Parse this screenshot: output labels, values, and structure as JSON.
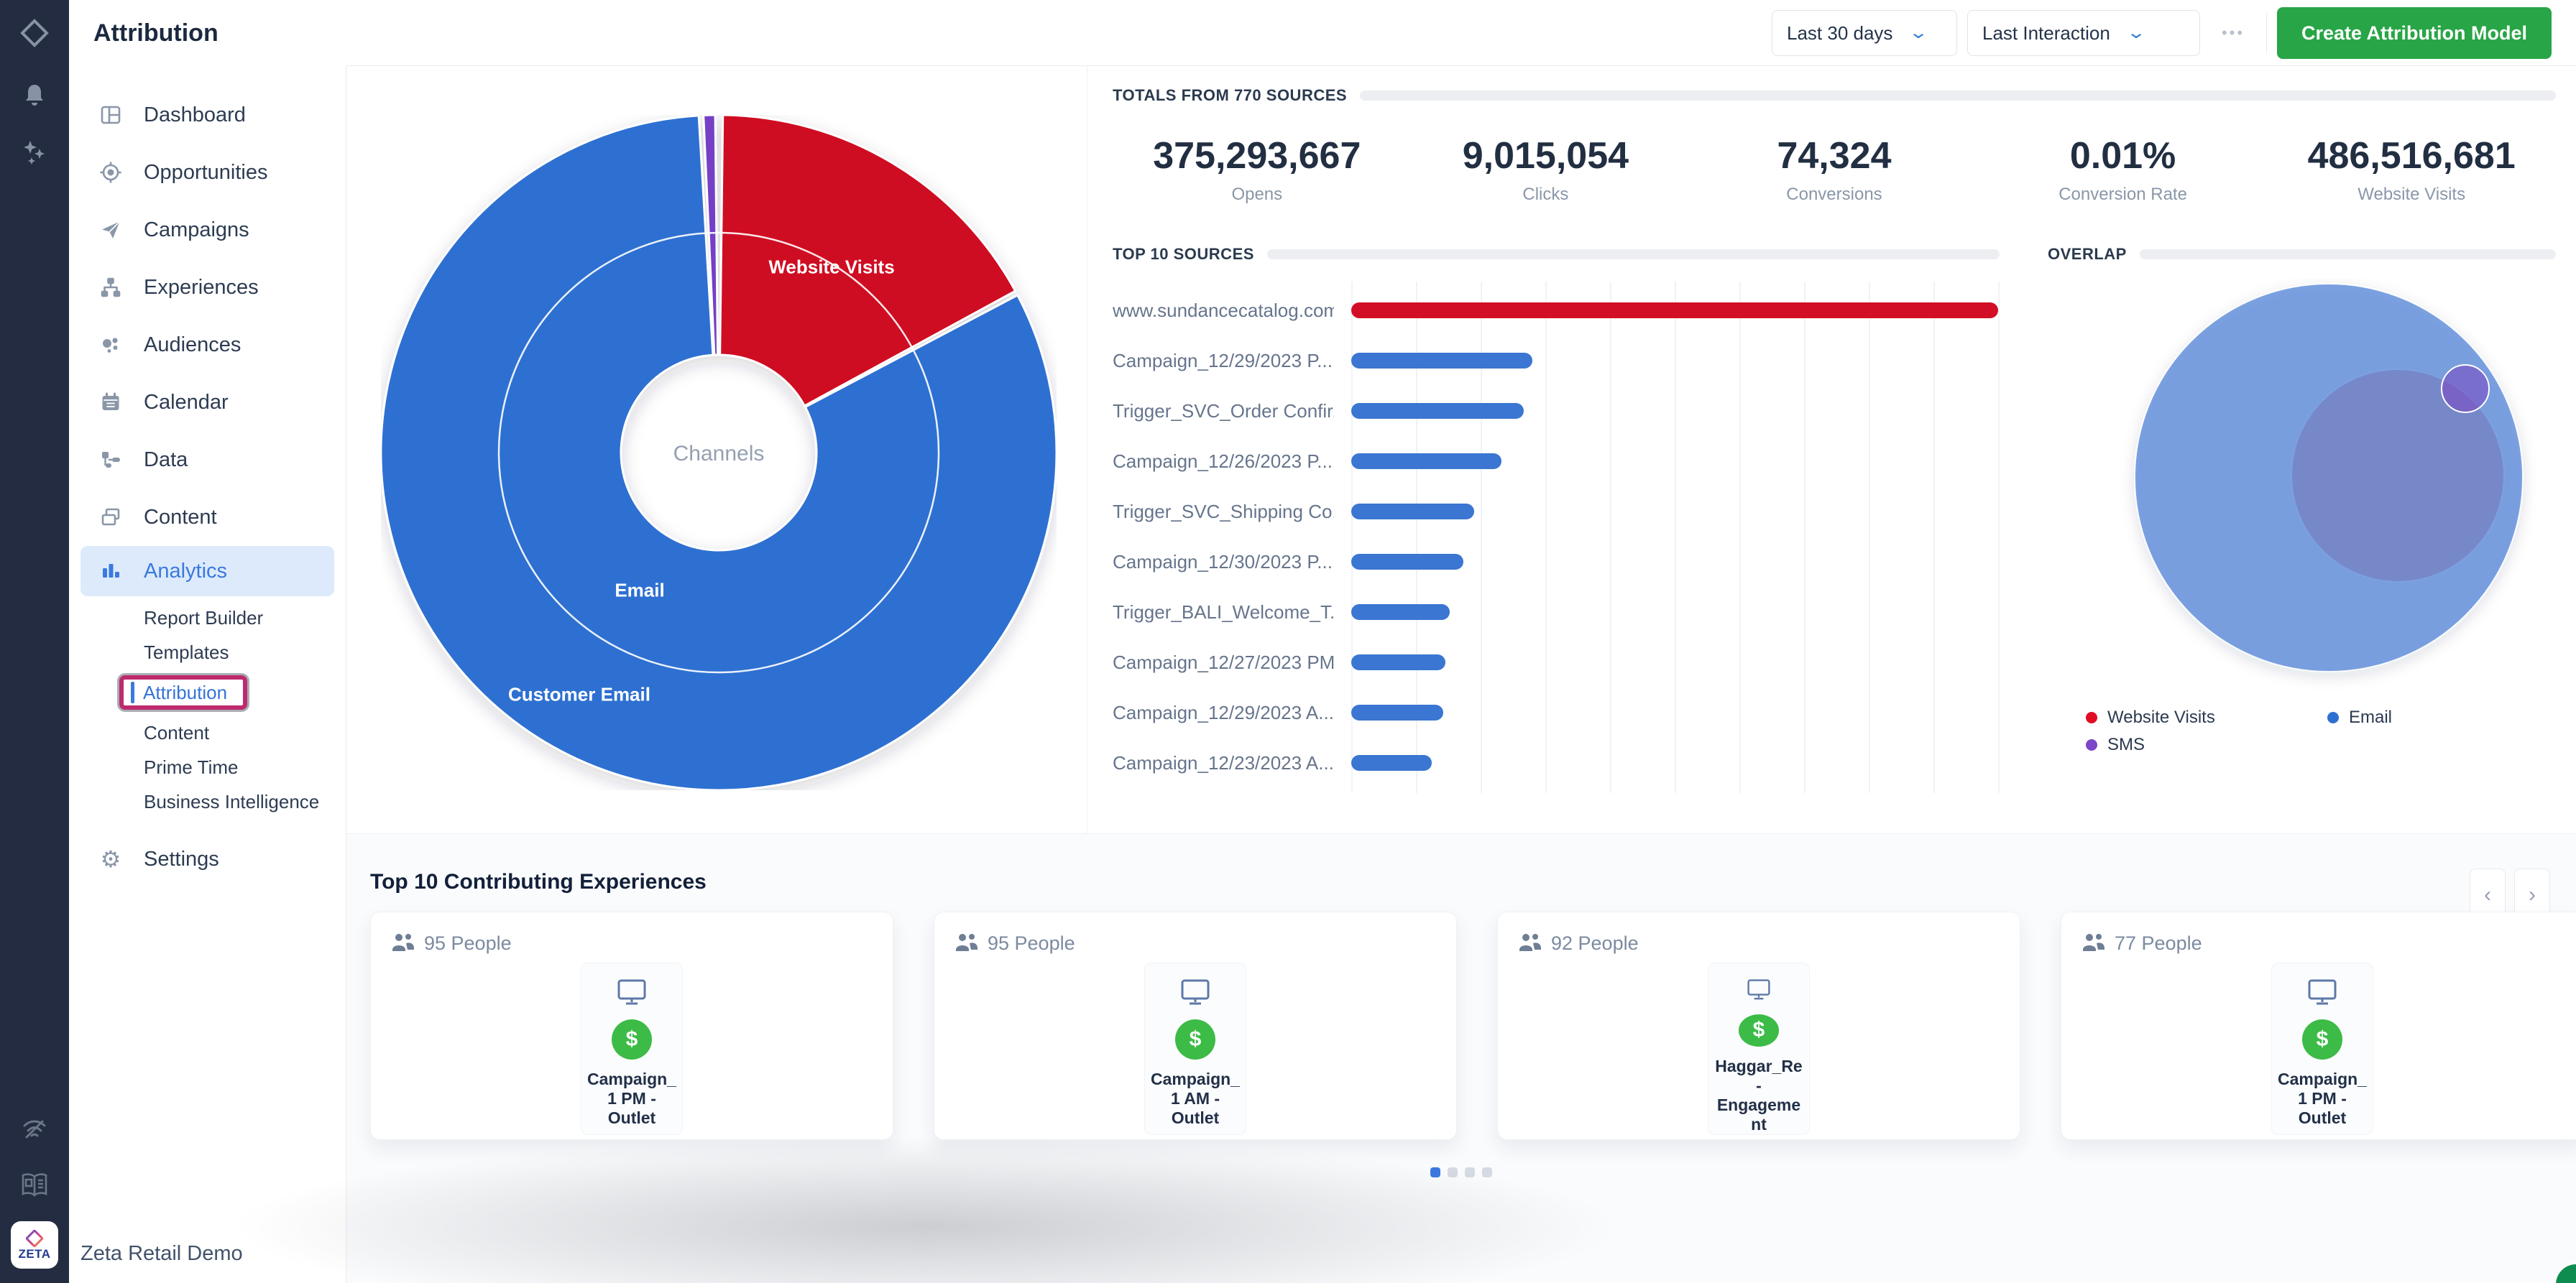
{
  "topbar": {
    "title": "Attribution",
    "date_range": "Last 30 days",
    "attribution_model": "Last Interaction",
    "more": "•••",
    "create_button": "Create Attribution Model"
  },
  "rail": {
    "bottom_logo_text": "ZETA"
  },
  "sidebar": {
    "items": [
      {
        "id": "dashboard",
        "label": "Dashboard"
      },
      {
        "id": "opportunities",
        "label": "Opportunities"
      },
      {
        "id": "campaigns",
        "label": "Campaigns"
      },
      {
        "id": "experiences",
        "label": "Experiences"
      },
      {
        "id": "audiences",
        "label": "Audiences"
      },
      {
        "id": "calendar",
        "label": "Calendar"
      },
      {
        "id": "data",
        "label": "Data"
      },
      {
        "id": "content",
        "label": "Content"
      },
      {
        "id": "analytics",
        "label": "Analytics",
        "active": true
      }
    ],
    "analytics_children": [
      "Report Builder",
      "Templates",
      "Attribution",
      "Content",
      "Prime Time",
      "Business Intelligence"
    ],
    "selected_child": "Attribution",
    "settings_label": "Settings",
    "workspace": "Zeta Retail Demo"
  },
  "totals": {
    "header": "TOTALS FROM 770 SOURCES",
    "metrics": [
      {
        "value": "375,293,667",
        "label": "Opens"
      },
      {
        "value": "9,015,054",
        "label": "Clicks"
      },
      {
        "value": "74,324",
        "label": "Conversions"
      },
      {
        "value": "0.01%",
        "label": "Conversion Rate"
      },
      {
        "value": "486,516,681",
        "label": "Website Visits"
      }
    ]
  },
  "sunburst": {
    "center_label": "Channels",
    "labels": {
      "red": "Website Visits",
      "inner_blue": "Email",
      "outer_blue": "Customer Email"
    },
    "segments": [
      {
        "name": "Website Visits",
        "color": "#CF0B22",
        "start": 0.7,
        "end": 61.4
      },
      {
        "name": "Email",
        "color": "#2E70D1",
        "start": 62.2,
        "end": 356.6
      },
      {
        "name": "SMS",
        "color": "#7440C6",
        "start": 357.4,
        "end": 359.4
      }
    ]
  },
  "top_sources": {
    "header": "TOP 10 SOURCES",
    "rows": [
      {
        "label": "www.sundancecatalog.com",
        "pct": 100,
        "color": "#D20E26"
      },
      {
        "label": "Campaign_12/29/2023 P...",
        "pct": 28,
        "color": "#3A76D2"
      },
      {
        "label": "Trigger_SVC_Order Confir...",
        "pct": 26.7,
        "color": "#3A76D2"
      },
      {
        "label": "Campaign_12/26/2023 P...",
        "pct": 23.2,
        "color": "#3A76D2"
      },
      {
        "label": "Trigger_SVC_Shipping Co...",
        "pct": 19,
        "color": "#3A76D2"
      },
      {
        "label": "Campaign_12/30/2023 P...",
        "pct": 17.3,
        "color": "#3A76D2"
      },
      {
        "label": "Trigger_BALI_Welcome_T...",
        "pct": 15.2,
        "color": "#3A76D2"
      },
      {
        "label": "Campaign_12/27/2023 PM...",
        "pct": 14.6,
        "color": "#3A76D2"
      },
      {
        "label": "Campaign_12/29/2023 A...",
        "pct": 14.2,
        "color": "#3A76D2"
      },
      {
        "label": "Campaign_12/23/2023 A...",
        "pct": 12.4,
        "color": "#3A76D2"
      }
    ]
  },
  "overlap": {
    "header": "OVERLAP",
    "circles": {
      "email": "rgba(100,144,220,0.85)",
      "website_visits": "#E15760",
      "sms": "rgba(124,62,191,0.5)"
    },
    "legend": [
      {
        "label": "Website Visits",
        "color": "#E00D25"
      },
      {
        "label": "Email",
        "color": "#2E70D1"
      },
      {
        "label": "SMS",
        "color": "#7C46C8"
      }
    ]
  },
  "experiences": {
    "title": "Top 10 Contributing Experiences",
    "cards": [
      {
        "people": "95 People",
        "name": "Campaign_1 PM - Outlet"
      },
      {
        "people": "95 People",
        "name": "Campaign_1 AM - Outlet"
      },
      {
        "people": "92 People",
        "name": "Haggar_Re-Engagement"
      },
      {
        "people": "77 People",
        "name": "Campaign_1 PM - Outlet"
      }
    ],
    "pagination": {
      "total": 4,
      "active_index": 0
    }
  }
}
